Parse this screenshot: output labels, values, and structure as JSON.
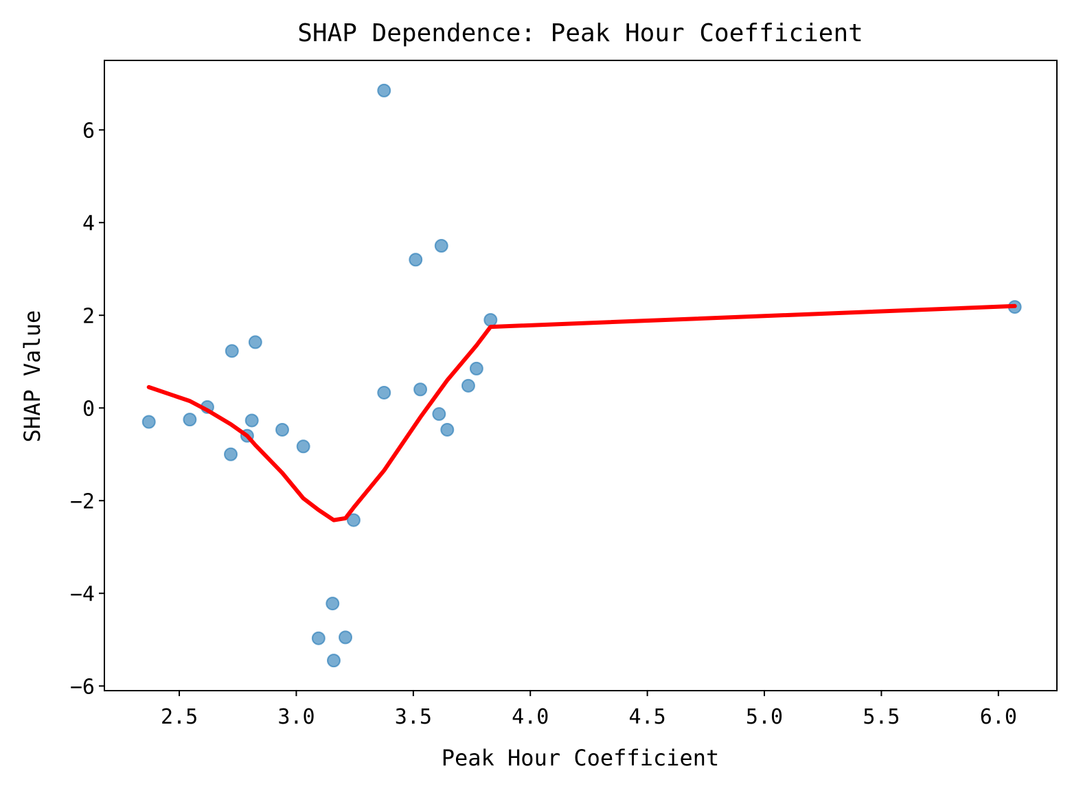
{
  "chart_data": {
    "type": "scatter",
    "title": "SHAP Dependence: Peak Hour Coefficient",
    "xlabel": "Peak Hour Coefficient",
    "ylabel": "SHAP Value",
    "xlim": [
      2.18,
      6.25
    ],
    "ylim": [
      -6.1,
      7.5
    ],
    "xticks": [
      2.5,
      3.0,
      3.5,
      4.0,
      4.5,
      5.0,
      5.5,
      6.0
    ],
    "xtick_labels": [
      "2.5",
      "3.0",
      "3.5",
      "4.0",
      "4.5",
      "5.0",
      "5.5",
      "6.0"
    ],
    "yticks": [
      -6,
      -4,
      -2,
      0,
      2,
      4,
      6
    ],
    "ytick_labels": [
      "−6",
      "−4",
      "−2",
      "0",
      "2",
      "4",
      "6"
    ],
    "grid": false,
    "colors": {
      "points": "#1f77b4",
      "trend": "#ff0000"
    },
    "series": [
      {
        "type": "scatter",
        "x": [
          2.37,
          2.545,
          2.62,
          2.72,
          2.725,
          2.79,
          2.81,
          2.825,
          2.94,
          3.03,
          3.095,
          3.155,
          3.16,
          3.21,
          3.245,
          3.375,
          3.375,
          3.51,
          3.53,
          3.61,
          3.62,
          3.645,
          3.735,
          3.77,
          3.83,
          6.07
        ],
        "y": [
          -0.3,
          -0.25,
          0.02,
          -1.0,
          1.23,
          -0.6,
          -0.27,
          1.42,
          -0.47,
          -0.83,
          -4.97,
          -4.22,
          -5.45,
          -4.95,
          -2.42,
          6.85,
          0.33,
          3.2,
          0.4,
          -0.13,
          3.5,
          -0.47,
          0.48,
          0.85,
          1.9,
          2.18
        ]
      },
      {
        "type": "line",
        "x": [
          2.37,
          2.545,
          2.62,
          2.72,
          2.79,
          2.825,
          2.94,
          3.03,
          3.095,
          3.16,
          3.21,
          3.245,
          3.375,
          3.53,
          3.645,
          3.77,
          3.83,
          6.07
        ],
        "y": [
          0.45,
          0.15,
          -0.05,
          -0.35,
          -0.6,
          -0.8,
          -1.4,
          -1.95,
          -2.2,
          -2.42,
          -2.38,
          -2.15,
          -1.35,
          -0.2,
          0.6,
          1.35,
          1.75,
          2.2
        ]
      }
    ]
  }
}
